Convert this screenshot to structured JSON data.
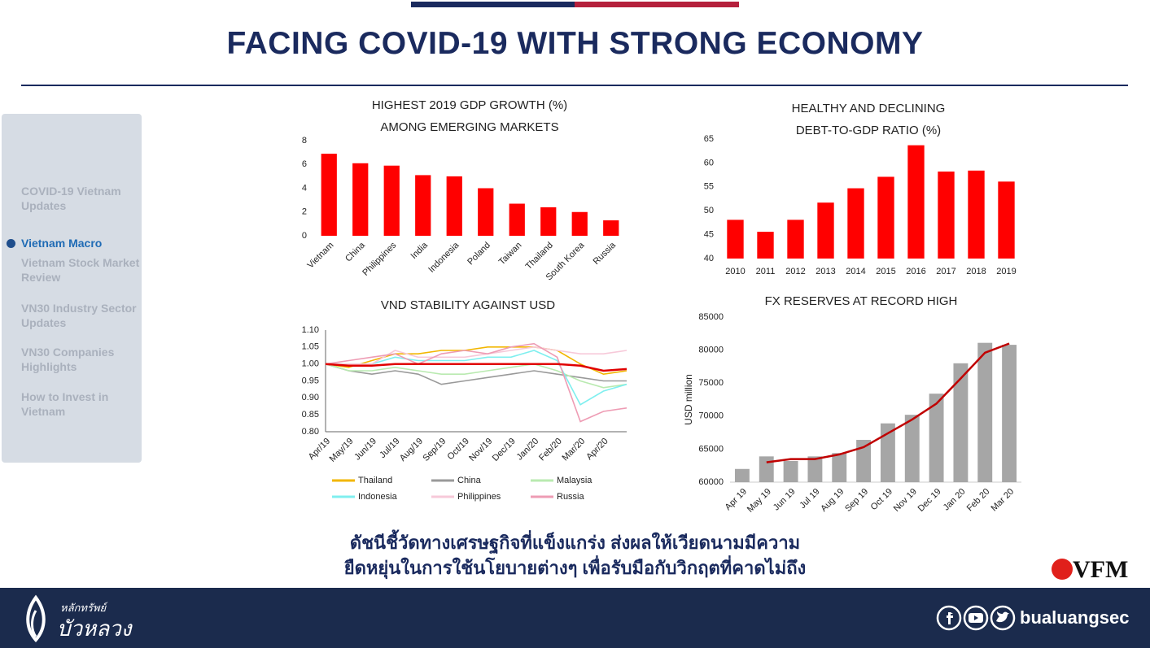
{
  "header": {
    "title": "FACING COVID-19 WITH STRONG ECONOMY"
  },
  "sidebar": {
    "items": [
      "COVID-19 Vietnam Updates",
      "Vietnam Macro",
      "Vietnam Stock Market Review",
      "VN30 Industry Sector Updates",
      "VN30 Companies Highlights",
      "How to Invest in Vietnam"
    ],
    "active": 1
  },
  "chart_data": [
    {
      "type": "bar",
      "title": "HIGHEST 2019 GDP GROWTH (%)",
      "subtitle": "AMONG EMERGING MARKETS",
      "categories": [
        "Vietnam",
        "China",
        "Philippines",
        "India",
        "Indonesia",
        "Poland",
        "Taiwan",
        "Thailand",
        "South Korea",
        "Russia"
      ],
      "values": [
        6.9,
        6.1,
        5.9,
        5.1,
        5.0,
        4.0,
        2.7,
        2.4,
        2.0,
        1.3
      ],
      "color": "#ff0000",
      "ylim": [
        0,
        8
      ],
      "yticks": [
        0,
        2,
        4,
        6,
        8
      ],
      "grid": false
    },
    {
      "type": "bar",
      "title": "HEALTHY AND DECLINING",
      "subtitle": "DEBT-TO-GDP RATIO (%)",
      "categories": [
        "2010",
        "2011",
        "2012",
        "2013",
        "2014",
        "2015",
        "2016",
        "2017",
        "2018",
        "2019"
      ],
      "values": [
        48.1,
        45.6,
        48.1,
        51.7,
        54.7,
        57.1,
        63.7,
        58.2,
        58.4,
        56.1
      ],
      "color": "#ff0000",
      "ylim": [
        40,
        65
      ],
      "yticks": [
        40,
        45,
        50,
        55,
        60,
        65
      ],
      "grid": false
    },
    {
      "type": "line",
      "title": "VND STABILITY AGAINST USD",
      "categories": [
        "Apr/19",
        "May/19",
        "Jun/19",
        "Jul/19",
        "Aug/19",
        "Sep/19",
        "Oct/19",
        "Nov/19",
        "Dec/19",
        "Jan/20",
        "Feb/20",
        "Mar/20",
        "Apr/20",
        null
      ],
      "series": [
        {
          "name": "Thailand",
          "color": "#f2b600",
          "values": [
            1.0,
            0.99,
            1.01,
            1.03,
            1.03,
            1.04,
            1.04,
            1.05,
            1.05,
            1.05,
            1.04,
            1.0,
            0.97,
            0.98
          ]
        },
        {
          "name": "China",
          "color": "#999999",
          "values": [
            1.0,
            0.98,
            0.97,
            0.98,
            0.97,
            0.94,
            0.95,
            0.96,
            0.97,
            0.98,
            0.97,
            0.96,
            0.95,
            0.95
          ]
        },
        {
          "name": "Malaysia",
          "color": "#b9eab0",
          "values": [
            1.0,
            0.98,
            0.98,
            0.99,
            0.98,
            0.97,
            0.97,
            0.98,
            0.99,
            1.0,
            0.98,
            0.95,
            0.93,
            0.94
          ]
        },
        {
          "name": "Indonesia",
          "color": "#7fefef",
          "values": [
            1.0,
            1.0,
            1.0,
            1.02,
            1.01,
            1.01,
            1.01,
            1.02,
            1.02,
            1.04,
            1.01,
            0.88,
            0.92,
            0.94
          ]
        },
        {
          "name": "Philippines",
          "color": "#f7c9d9",
          "values": [
            1.0,
            1.0,
            1.0,
            1.04,
            1.02,
            1.02,
            1.02,
            1.03,
            1.04,
            1.05,
            1.04,
            1.03,
            1.03,
            1.04
          ]
        },
        {
          "name": "Russia",
          "color": "#ee9cb4",
          "values": [
            1.0,
            1.01,
            1.02,
            1.03,
            1.0,
            1.03,
            1.04,
            1.03,
            1.05,
            1.06,
            1.02,
            0.83,
            0.86,
            0.87
          ]
        },
        {
          "color": "#e00000",
          "values": [
            1.0,
            0.995,
            0.995,
            1.0,
            1.0,
            1.0,
            1.0,
            1.0,
            1.0,
            1.0,
            1.0,
            0.995,
            0.98,
            0.985
          ]
        }
      ],
      "ylim": [
        0.8,
        1.1
      ],
      "yticks": [
        {
          "value": 0.8,
          "label": "0.80"
        },
        0.85,
        {
          "value": 0.9,
          "label": "0.90"
        },
        0.95,
        {
          "value": 1,
          "label": "1.00"
        },
        1.05,
        {
          "value": 1.1,
          "label": "1.10"
        }
      ],
      "grid": false,
      "legend": "bottom"
    },
    {
      "type": "bar",
      "title": "FX RESERVES AT RECORD HIGH",
      "y_label": "USD million",
      "categories": [
        "Apr 19",
        "May 19",
        "Jun 19",
        "Jul 19",
        "Aug 19",
        "Sep 19",
        "Oct 19",
        "Nov 19",
        "Dec 19",
        "Jan 20",
        "Feb 20",
        "Mar 20"
      ],
      "series": [
        {
          "color": "#a6a6a6",
          "values": [
            62000,
            63900,
            63200,
            63900,
            64400,
            66400,
            68900,
            70200,
            73400,
            78000,
            81100,
            80800
          ]
        },
        {
          "type": "line",
          "color": "#c00000",
          "values": [
            null,
            63000,
            63500,
            63500,
            64200,
            65300,
            67400,
            69500,
            71900,
            75700,
            79600,
            81000
          ]
        }
      ],
      "ylim": [
        60000,
        85000
      ],
      "yticks": [
        60000,
        65000,
        70000,
        75000,
        80000,
        85000
      ],
      "grid": false
    }
  ],
  "caption": [
    "ดัชนีชี้วัดทางเศรษฐกิจที่แข็งแกร่ง ส่งผลให้เวียดนามมีความ",
    "ยืดหยุ่นในการใช้นโยบายต่างๆ เพื่อรับมือกับวิกฤตที่คาดไม่ถึง"
  ],
  "brand": {
    "vfm": "VFM",
    "logo_top": "หลักทรัพย์",
    "logo_main": "บัวหลวง",
    "site": "bualuangsec"
  }
}
